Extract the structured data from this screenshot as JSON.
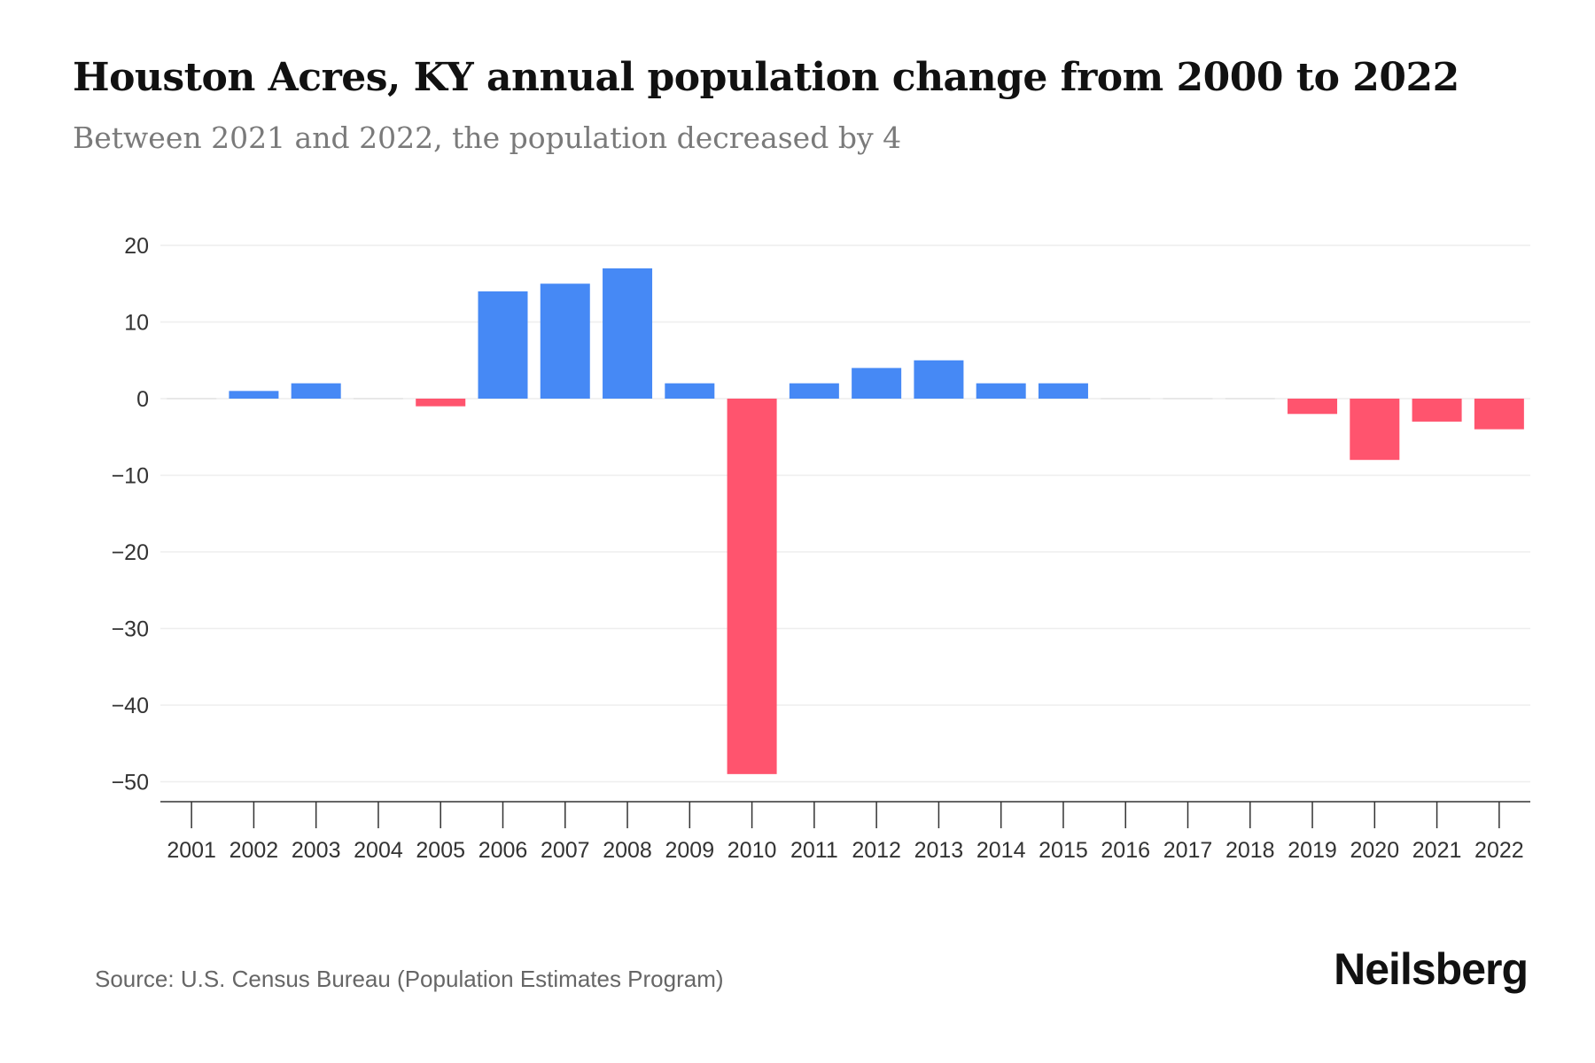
{
  "title": "Houston Acres, KY annual population change from 2000 to 2022",
  "subtitle": "Between 2021 and 2022, the population decreased by 4",
  "source": "Source: U.S. Census Bureau (Population Estimates Program)",
  "logo": "Neilsberg",
  "colors": {
    "positive": "#4689f5",
    "negative": "#ff546e",
    "zero": "#e8e8e8",
    "grid": "#eeeeee",
    "axis": "#333333"
  },
  "chart_data": {
    "type": "bar",
    "title": "Houston Acres, KY annual population change from 2000 to 2022",
    "xlabel": "",
    "ylabel": "",
    "ylim": [
      -53,
      22
    ],
    "yticks": [
      20,
      10,
      0,
      -10,
      -20,
      -30,
      -40,
      -50
    ],
    "ytick_labels": [
      "20",
      "10",
      "0",
      "−10",
      "−20",
      "−30",
      "−40",
      "−50"
    ],
    "grid": true,
    "categories": [
      "2001",
      "2002",
      "2003",
      "2004",
      "2005",
      "2006",
      "2007",
      "2008",
      "2009",
      "2010",
      "2011",
      "2012",
      "2013",
      "2014",
      "2015",
      "2016",
      "2017",
      "2018",
      "2019",
      "2020",
      "2021",
      "2022"
    ],
    "values": [
      0,
      1,
      2,
      0,
      -1,
      14,
      15,
      17,
      2,
      -49,
      2,
      4,
      5,
      2,
      2,
      0,
      0,
      0,
      -2,
      -8,
      -3,
      -4
    ]
  }
}
